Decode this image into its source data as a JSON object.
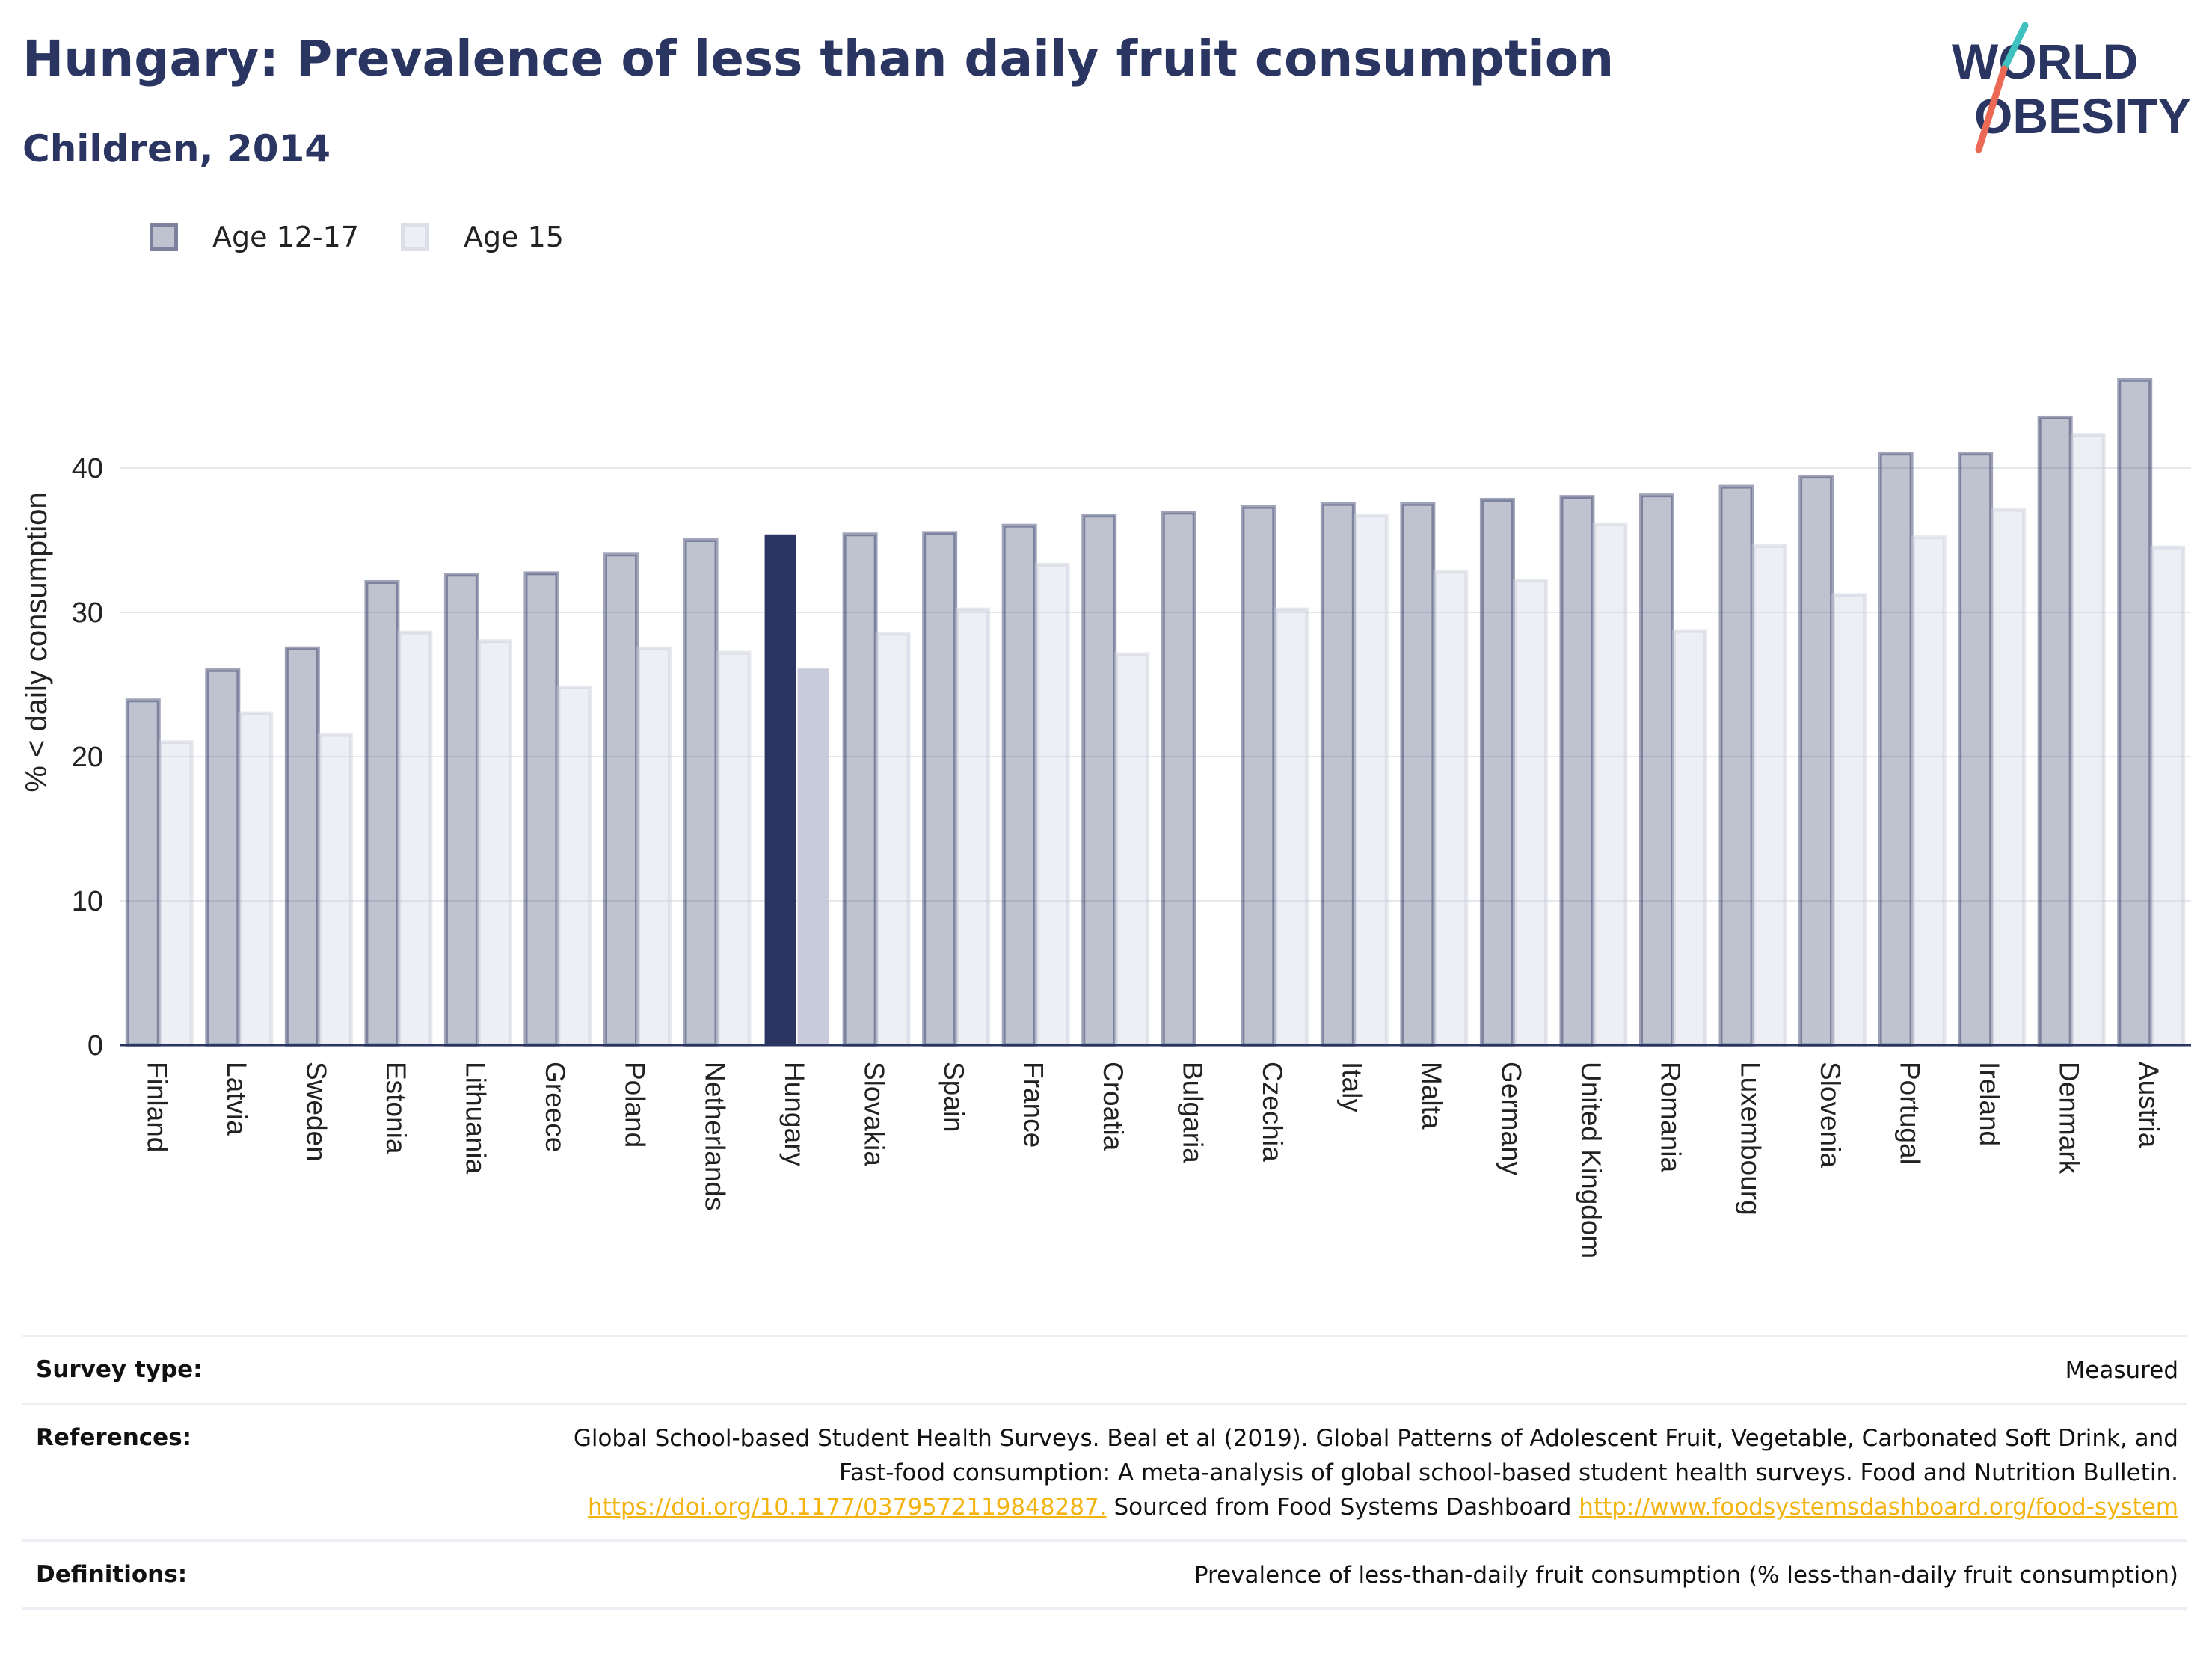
{
  "title": "Hungary: Prevalence of less than daily fruit consumption",
  "subtitle": "Children, 2014",
  "logo": {
    "line1": "WORLD",
    "line2": "OBESITY"
  },
  "legend": [
    {
      "label": "Age 12-17",
      "color": "#2b3561"
    },
    {
      "label": "Age 15",
      "color": "#c8cbda"
    }
  ],
  "highlight_category": "Hungary",
  "colors": {
    "series1": "#2b3561",
    "series2": "#c8cbda",
    "grid": "#e6e8ee",
    "text": "#2b3561",
    "link": "#f4b30e"
  },
  "chart_data": {
    "type": "bar",
    "ylabel": "% < daily consumption",
    "xlabel": "",
    "ylim": [
      0,
      50
    ],
    "yticks": [
      0,
      10,
      20,
      30,
      40
    ],
    "grid": true,
    "legend_position": "top-left",
    "categories": [
      "Finland",
      "Latvia",
      "Sweden",
      "Estonia",
      "Lithuania",
      "Greece",
      "Poland",
      "Netherlands",
      "Hungary",
      "Slovakia",
      "Spain",
      "France",
      "Croatia",
      "Bulgaria",
      "Czechia",
      "Italy",
      "Malta",
      "Germany",
      "United Kingdom",
      "Romania",
      "Luxembourg",
      "Slovenia",
      "Portugal",
      "Ireland",
      "Denmark",
      "Austria"
    ],
    "series": [
      {
        "name": "Age 12-17",
        "values": [
          23.9,
          26.0,
          27.5,
          32.1,
          32.6,
          32.7,
          34.0,
          35.0,
          35.4,
          35.4,
          35.5,
          36.0,
          36.7,
          36.9,
          37.3,
          37.5,
          37.5,
          37.8,
          38.0,
          38.1,
          38.7,
          39.4,
          41.0,
          41.0,
          43.5,
          46.1
        ]
      },
      {
        "name": "Age 15",
        "values": [
          21.0,
          23.0,
          21.5,
          28.6,
          28.0,
          24.8,
          27.5,
          27.2,
          26.1,
          28.5,
          30.2,
          33.3,
          27.1,
          null,
          30.2,
          36.7,
          32.8,
          32.2,
          36.1,
          28.7,
          34.6,
          31.2,
          35.2,
          37.1,
          42.3,
          34.5
        ]
      }
    ]
  },
  "meta": {
    "survey_type_label": "Survey type:",
    "survey_type_value": "Measured",
    "references_label": "References:",
    "references_text_1": "Global School-based Student Health Surveys. Beal et al (2019). Global Patterns of Adolescent Fruit, Vegetable, Carbonated Soft Drink, and Fast-food consumption: A meta-analysis of global school-based student health surveys. Food and Nutrition Bulletin.",
    "references_link_1": "https://doi.org/10.1177/0379572119848287.",
    "references_text_2": "Sourced from Food Systems Dashboard",
    "references_link_2": "http://www.foodsystemsdashboard.org/food-system",
    "definitions_label": "Definitions:",
    "definitions_value": "Prevalence of less-than-daily fruit consumption (% less-than-daily fruit consumption)"
  }
}
